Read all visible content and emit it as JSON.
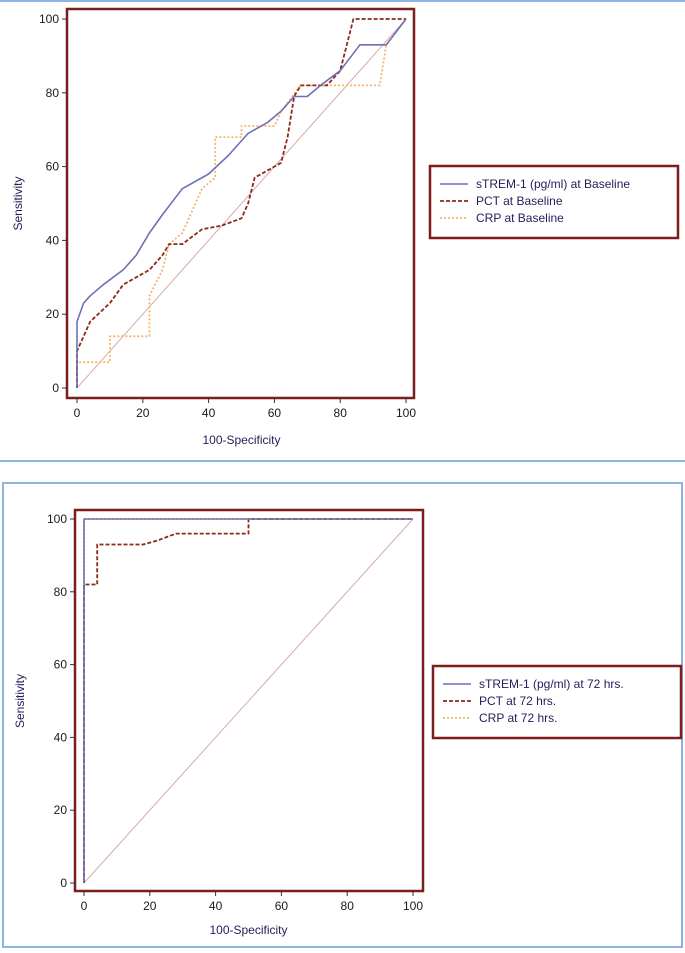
{
  "colors": {
    "strem": "#6f6fb8",
    "pct": "#8b2a18",
    "crp": "#f2b56b",
    "diag": "#d9a9a9",
    "frame": "#7a1e1e",
    "panel_border": "#8eb4e3"
  },
  "chart_data": [
    {
      "type": "line",
      "xlabel": "100-Specificity",
      "ylabel": "Sensitivity",
      "xlim": [
        0,
        100
      ],
      "ylim": [
        0,
        100
      ],
      "xticks": [
        "0",
        "20",
        "40",
        "60",
        "80",
        "100"
      ],
      "yticks": [
        "0",
        "20",
        "40",
        "60",
        "80",
        "100"
      ],
      "grid": false,
      "legend_position": "right",
      "series": [
        {
          "name": "sTREM-1 (pg/ml) at Baseline",
          "style": "solid",
          "color_key": "strem",
          "points": [
            [
              0,
              0
            ],
            [
              0,
              11
            ],
            [
              0,
              18
            ],
            [
              2,
              23
            ],
            [
              4,
              25
            ],
            [
              8,
              28
            ],
            [
              14,
              32
            ],
            [
              18,
              36
            ],
            [
              22,
              42
            ],
            [
              26,
              47
            ],
            [
              32,
              54
            ],
            [
              40,
              58
            ],
            [
              46,
              63
            ],
            [
              52,
              69
            ],
            [
              58,
              72
            ],
            [
              62,
              75
            ],
            [
              66,
              79
            ],
            [
              70,
              79
            ],
            [
              74,
              82
            ],
            [
              80,
              86
            ],
            [
              86,
              93
            ],
            [
              94,
              93
            ],
            [
              100,
              100
            ]
          ]
        },
        {
          "name": "PCT at Baseline",
          "style": "dashed",
          "color_key": "pct",
          "points": [
            [
              0,
              0
            ],
            [
              0,
              10
            ],
            [
              2,
              14
            ],
            [
              4,
              18
            ],
            [
              10,
              23
            ],
            [
              14,
              28
            ],
            [
              18,
              30
            ],
            [
              22,
              32
            ],
            [
              26,
              36
            ],
            [
              28,
              39
            ],
            [
              32,
              39
            ],
            [
              38,
              43
            ],
            [
              44,
              44
            ],
            [
              50,
              46
            ],
            [
              52,
              50
            ],
            [
              54,
              57
            ],
            [
              58,
              59
            ],
            [
              62,
              61
            ],
            [
              64,
              68
            ],
            [
              66,
              79
            ],
            [
              68,
              82
            ],
            [
              76,
              82
            ],
            [
              80,
              86
            ],
            [
              82,
              93
            ],
            [
              84,
              100
            ],
            [
              100,
              100
            ]
          ]
        },
        {
          "name": "CRP at Baseline",
          "style": "dotted",
          "color_key": "crp",
          "points": [
            [
              0,
              0
            ],
            [
              0,
              7
            ],
            [
              10,
              7
            ],
            [
              10,
              14
            ],
            [
              22,
              14
            ],
            [
              22,
              25
            ],
            [
              26,
              32
            ],
            [
              28,
              39
            ],
            [
              32,
              42
            ],
            [
              38,
              54
            ],
            [
              42,
              57
            ],
            [
              42,
              68
            ],
            [
              50,
              68
            ],
            [
              50,
              71
            ],
            [
              54,
              71
            ],
            [
              60,
              71
            ],
            [
              62,
              75
            ],
            [
              68,
              82
            ],
            [
              72,
              82
            ],
            [
              84,
              82
            ],
            [
              92,
              82
            ],
            [
              94,
              93
            ],
            [
              100,
              100
            ]
          ]
        }
      ]
    },
    {
      "type": "line",
      "xlabel": "100-Specificity",
      "ylabel": "Sensitivity",
      "xlim": [
        0,
        100
      ],
      "ylim": [
        0,
        100
      ],
      "xticks": [
        "0",
        "20",
        "40",
        "60",
        "80",
        "100"
      ],
      "yticks": [
        "0",
        "20",
        "40",
        "60",
        "80",
        "100"
      ],
      "grid": false,
      "legend_position": "right",
      "series": [
        {
          "name": "sTREM-1 (pg/ml) at 72 hrs.",
          "style": "solid",
          "color_key": "strem",
          "points": [
            [
              0,
              0
            ],
            [
              0,
              100
            ],
            [
              100,
              100
            ]
          ]
        },
        {
          "name": "PCT at 72 hrs.",
          "style": "dashed",
          "color_key": "pct",
          "points": [
            [
              0,
              0
            ],
            [
              0,
              82
            ],
            [
              4,
              82
            ],
            [
              4,
              93
            ],
            [
              18,
              93
            ],
            [
              22,
              94
            ],
            [
              28,
              96
            ],
            [
              50,
              96
            ],
            [
              50,
              100
            ],
            [
              100,
              100
            ]
          ]
        },
        {
          "name": "CRP at 72 hrs.",
          "style": "dotted",
          "color_key": "crp",
          "points": [
            [
              0,
              0
            ],
            [
              0,
              100
            ],
            [
              100,
              100
            ]
          ]
        }
      ]
    }
  ]
}
